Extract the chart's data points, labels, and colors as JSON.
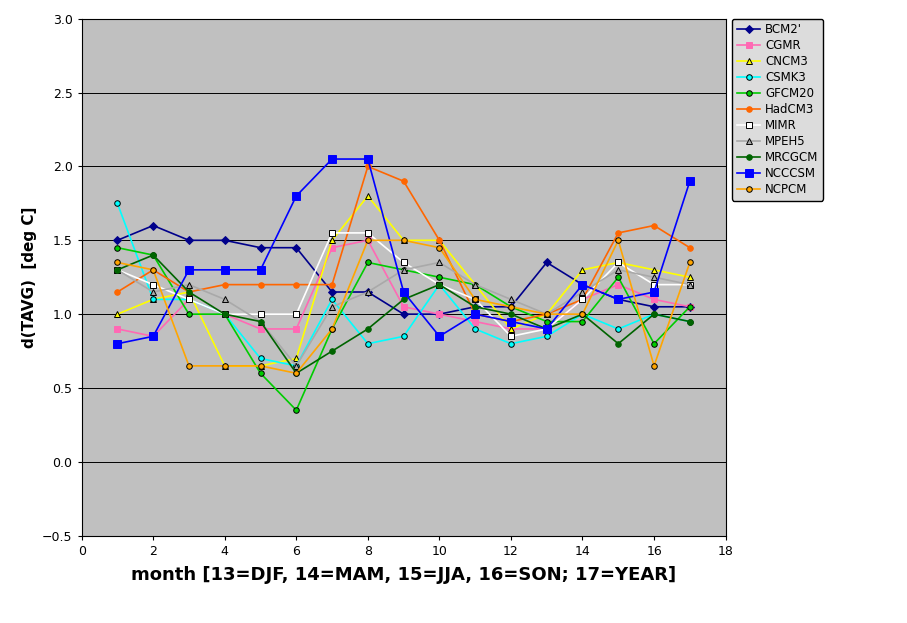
{
  "series": {
    "BCM2'": {
      "color": "#00008B",
      "marker": "D",
      "markersize": 4,
      "x": [
        1,
        2,
        3,
        4,
        5,
        6,
        7,
        8,
        9,
        10,
        11,
        12,
        13,
        14,
        15,
        16,
        17
      ],
      "y": [
        1.5,
        1.6,
        1.5,
        1.5,
        1.45,
        1.45,
        1.15,
        1.15,
        1.0,
        1.0,
        1.05,
        1.05,
        1.35,
        1.2,
        1.1,
        1.05,
        1.05
      ]
    },
    "CGMR": {
      "color": "#FF69B4",
      "marker": "s",
      "markersize": 4,
      "x": [
        1,
        2,
        3,
        4,
        5,
        6,
        7,
        8,
        9,
        10,
        11,
        12,
        13,
        14,
        15,
        16,
        17
      ],
      "y": [
        0.9,
        0.85,
        1.1,
        1.0,
        0.9,
        0.9,
        1.45,
        1.5,
        1.05,
        1.0,
        0.95,
        0.9,
        0.9,
        1.1,
        1.2,
        1.1,
        1.05
      ]
    },
    "CNCM3": {
      "color": "#FFFF00",
      "marker": "^",
      "markersize": 5,
      "x": [
        1,
        2,
        3,
        4,
        5,
        6,
        7,
        8,
        9,
        10,
        11,
        12,
        13,
        14,
        15,
        16,
        17
      ],
      "y": [
        1.0,
        1.1,
        1.15,
        0.65,
        0.65,
        0.7,
        1.5,
        1.8,
        1.5,
        1.5,
        1.2,
        0.9,
        1.0,
        1.3,
        1.35,
        1.3,
        1.25
      ]
    },
    "CSMK3": {
      "color": "#00FFFF",
      "marker": "o",
      "markersize": 4,
      "x": [
        1,
        2,
        3,
        4,
        5,
        6,
        7,
        8,
        9,
        10,
        11,
        12,
        13,
        14,
        15,
        16,
        17
      ],
      "y": [
        1.75,
        1.1,
        1.1,
        1.0,
        0.7,
        0.65,
        1.1,
        0.8,
        0.85,
        1.2,
        0.9,
        0.8,
        0.85,
        1.0,
        0.9,
        1.0,
        0.95
      ]
    },
    "GFCM20": {
      "color": "#00CC00",
      "marker": "o",
      "markersize": 4,
      "x": [
        1,
        2,
        3,
        4,
        5,
        6,
        7,
        8,
        9,
        10,
        11,
        12,
        13,
        14,
        15,
        16,
        17
      ],
      "y": [
        1.45,
        1.4,
        1.0,
        1.0,
        0.6,
        0.35,
        0.9,
        1.35,
        1.3,
        1.25,
        1.2,
        1.05,
        0.95,
        0.95,
        1.25,
        0.8,
        1.05
      ]
    },
    "HadCM3": {
      "color": "#FF6600",
      "marker": "o",
      "markersize": 4,
      "x": [
        1,
        2,
        3,
        4,
        5,
        6,
        7,
        8,
        9,
        10,
        11,
        12,
        13,
        14,
        15,
        16,
        17
      ],
      "y": [
        1.15,
        1.3,
        1.15,
        1.2,
        1.2,
        1.2,
        1.2,
        2.0,
        1.9,
        1.5,
        1.0,
        0.95,
        1.0,
        1.1,
        1.55,
        1.6,
        1.45
      ]
    },
    "MIMR": {
      "color": "#FFFFFF",
      "marker": "s",
      "markersize": 5,
      "x": [
        1,
        2,
        3,
        4,
        5,
        6,
        7,
        8,
        9,
        10,
        11,
        12,
        13,
        14,
        15,
        16,
        17
      ],
      "y": [
        1.3,
        1.2,
        1.1,
        1.0,
        1.0,
        1.0,
        1.55,
        1.55,
        1.35,
        1.2,
        1.1,
        0.85,
        0.9,
        1.1,
        1.35,
        1.2,
        1.2
      ]
    },
    "MPEH5": {
      "color": "#A9A9A9",
      "marker": "^",
      "markersize": 5,
      "x": [
        1,
        2,
        3,
        4,
        5,
        6,
        7,
        8,
        9,
        10,
        11,
        12,
        13,
        14,
        15,
        16,
        17
      ],
      "y": [
        1.3,
        1.15,
        1.2,
        1.1,
        0.95,
        0.65,
        1.05,
        1.15,
        1.3,
        1.35,
        1.2,
        1.1,
        1.0,
        1.15,
        1.3,
        1.25,
        1.2
      ]
    },
    "MRCGCM": {
      "color": "#006400",
      "marker": "o",
      "markersize": 4,
      "x": [
        1,
        2,
        3,
        4,
        5,
        6,
        7,
        8,
        9,
        10,
        11,
        12,
        13,
        14,
        15,
        16,
        17
      ],
      "y": [
        1.3,
        1.4,
        1.15,
        1.0,
        0.95,
        0.6,
        0.75,
        0.9,
        1.1,
        1.2,
        1.05,
        1.0,
        0.9,
        1.0,
        0.8,
        1.0,
        0.95
      ]
    },
    "NCCCSM": {
      "color": "#0000FF",
      "marker": "s",
      "markersize": 6,
      "x": [
        1,
        2,
        3,
        4,
        5,
        6,
        7,
        8,
        9,
        10,
        11,
        12,
        13,
        14,
        15,
        16,
        17
      ],
      "y": [
        0.8,
        0.85,
        1.3,
        1.3,
        1.3,
        1.8,
        2.05,
        2.05,
        1.15,
        0.85,
        1.0,
        0.95,
        0.9,
        1.2,
        1.1,
        1.15,
        1.9
      ]
    },
    "NCPCM": {
      "color": "#FFA500",
      "marker": "o",
      "markersize": 4,
      "x": [
        1,
        2,
        3,
        4,
        5,
        6,
        7,
        8,
        9,
        10,
        11,
        12,
        13,
        14,
        15,
        16,
        17
      ],
      "y": [
        1.35,
        1.3,
        0.65,
        0.65,
        0.65,
        0.6,
        0.9,
        1.5,
        1.5,
        1.45,
        1.1,
        1.05,
        1.0,
        1.0,
        1.5,
        0.65,
        1.35
      ]
    }
  },
  "xlabel": "month [13=DJF, 14=MAM, 15=JJA, 16=SON; 17=YEAR]",
  "ylabel": "d(TAVG)  [deg C]",
  "xlim": [
    0,
    18
  ],
  "ylim": [
    -0.5,
    3.0
  ],
  "xticks": [
    0,
    2,
    4,
    6,
    8,
    10,
    12,
    14,
    16,
    18
  ],
  "yticks": [
    -0.5,
    0.0,
    0.5,
    1.0,
    1.5,
    2.0,
    2.5,
    3.0
  ],
  "fig_bg_color": "#FFFFFF",
  "plot_bg_color": "#C0C0C0",
  "grid_color": "#000000"
}
